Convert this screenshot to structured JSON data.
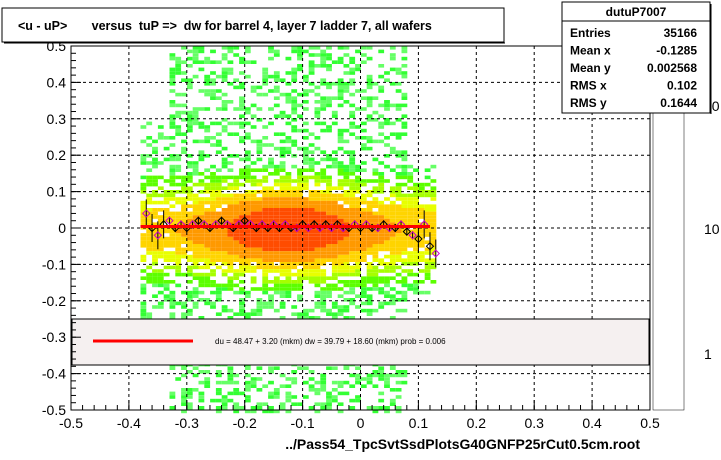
{
  "chart_data": {
    "type": "heatmap",
    "title": "<u - uP>       versus  tuP =>  dw for barrel 4, layer 7 ladder 7, all wafers",
    "xlabel": "../Pass54_TpcSvtSsdPlotsG40GNFP25rCut0.5cm.root",
    "ylabel": "",
    "xlim": [
      -0.5,
      0.5
    ],
    "ylim": [
      -0.5,
      0.5
    ],
    "x_ticks": [
      "-0.5",
      "-0.4",
      "-0.3",
      "-0.2",
      "-0.1",
      "0",
      "0.1",
      "0.2",
      "0.3",
      "0.4",
      "0.5"
    ],
    "y_ticks": [
      "-0.5",
      "-0.4",
      "-0.3",
      "-0.2",
      "-0.1",
      "0",
      "0.1",
      "0.2",
      "0.3",
      "0.4",
      "0.5"
    ],
    "grid": true,
    "colorbar": {
      "scale": "log",
      "labels": [
        "1",
        "10",
        "10"
      ]
    },
    "stats": {
      "name": "dutuP7007",
      "rows": [
        {
          "label": "Entries",
          "value": "35166"
        },
        {
          "label": "Mean x",
          "value": "-0.1285"
        },
        {
          "label": "Mean y",
          "value": "0.002568"
        },
        {
          "label": "RMS x",
          "value": "0.102"
        },
        {
          "label": "RMS y",
          "value": "0.1644"
        }
      ]
    },
    "fit_text": "du =   48.47 +   3.20 (mkm) dw =   39.79 +  18.60 (mkm) prob = 0.006",
    "fit_line": {
      "x": [
        -0.38,
        0.12
      ],
      "y": [
        0.004,
        0.004
      ],
      "color": "#ff0000"
    },
    "profile_points": {
      "x": [
        -0.37,
        -0.36,
        -0.35,
        -0.34,
        -0.33,
        -0.32,
        -0.31,
        -0.3,
        -0.29,
        -0.28,
        -0.27,
        -0.26,
        -0.25,
        -0.24,
        -0.23,
        -0.22,
        -0.21,
        -0.2,
        -0.19,
        -0.18,
        -0.17,
        -0.16,
        -0.15,
        -0.14,
        -0.13,
        -0.12,
        -0.11,
        -0.1,
        -0.09,
        -0.08,
        -0.07,
        -0.06,
        -0.05,
        -0.04,
        -0.03,
        -0.02,
        -0.01,
        0.0,
        0.01,
        0.02,
        0.03,
        0.04,
        0.05,
        0.06,
        0.07,
        0.08,
        0.09,
        0.1,
        0.11,
        0.12,
        0.13
      ],
      "y": [
        0.04,
        0.0,
        -0.02,
        0.01,
        0.02,
        0.0,
        0.01,
        0.0,
        0.01,
        0.02,
        0.01,
        0.0,
        0.01,
        0.02,
        0.01,
        0.0,
        0.01,
        0.02,
        0.01,
        0.0,
        0.01,
        0.0,
        0.01,
        0.0,
        0.01,
        0.0,
        0.0,
        0.01,
        0.0,
        0.01,
        0.0,
        0.01,
        0.0,
        0.01,
        0.0,
        0.0,
        0.01,
        0.0,
        0.01,
        0.0,
        0.0,
        0.01,
        0.0,
        0.0,
        0.01,
        -0.01,
        -0.02,
        -0.03,
        0.01,
        -0.05,
        -0.07
      ]
    },
    "legend_placement": "bottom-center"
  }
}
